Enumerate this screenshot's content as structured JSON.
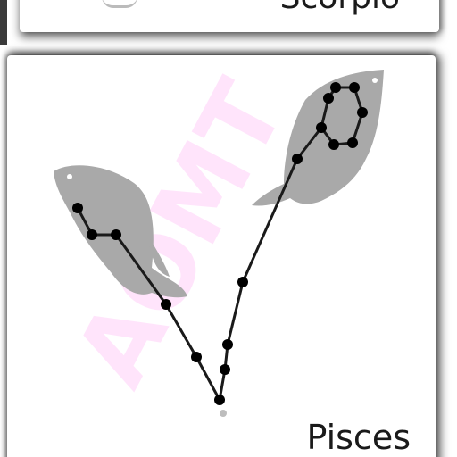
{
  "top_card": {
    "label": "Scorpio"
  },
  "card": {
    "caption": "Pisces",
    "watermark": "AOMT"
  },
  "colors": {
    "fish": "#a9a9a9",
    "line": "#1a1a1a",
    "star": "#000000",
    "watermark": "#ff9ff0"
  },
  "icons": {
    "fish_left": "fish-icon",
    "fish_right": "fish-icon"
  }
}
